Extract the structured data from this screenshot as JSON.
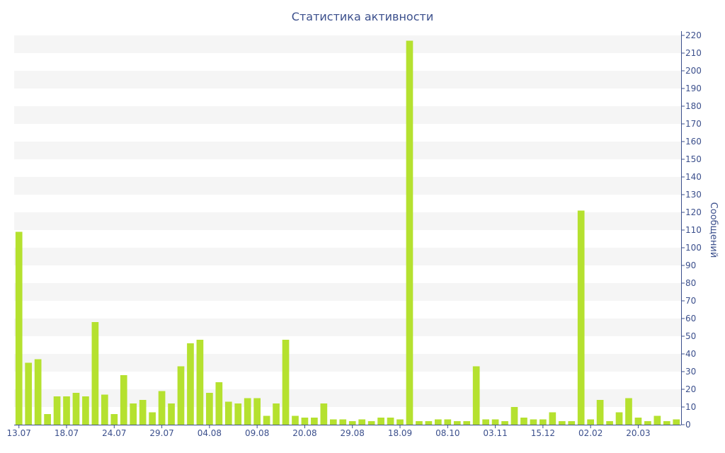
{
  "chart_data": {
    "type": "bar",
    "title": "Статистика активности",
    "xlabel": "",
    "ylabel": "Сообщений",
    "ylim": [
      0,
      220
    ],
    "ytick_step": 10,
    "y_axis_side": "right",
    "grid": "horizontal alternating bands",
    "x_tick_labels": [
      "13.07",
      "18.07",
      "24.07",
      "29.07",
      "04.08",
      "09.08",
      "20.08",
      "29.08",
      "18.09",
      "08.10",
      "03.11",
      "15.12",
      "02.02",
      "20.03"
    ],
    "x_tick_positions": [
      0,
      5,
      10,
      15,
      20,
      25,
      30,
      35,
      40,
      45,
      50,
      55,
      60,
      65
    ],
    "series": [
      {
        "values": [
          109,
          35,
          37,
          6,
          16,
          16,
          18,
          16,
          58,
          17,
          6,
          28,
          12,
          14,
          7,
          19,
          12,
          33,
          46,
          48,
          18,
          24,
          13,
          12,
          15,
          15,
          5,
          12,
          48,
          5,
          4,
          4,
          12,
          3,
          3,
          2,
          3,
          2,
          4,
          4,
          3,
          217,
          2,
          2,
          3,
          3,
          2,
          2,
          33,
          3,
          3,
          2,
          10,
          4,
          3,
          3,
          7,
          2,
          2,
          121,
          3,
          14,
          2,
          7,
          15,
          4,
          2,
          5,
          2,
          3
        ]
      }
    ],
    "colors": {
      "bar": "#b5e12f",
      "title": "#3b4f8c",
      "axis": "#3b4f8c",
      "band": "#f5f5f5"
    }
  }
}
